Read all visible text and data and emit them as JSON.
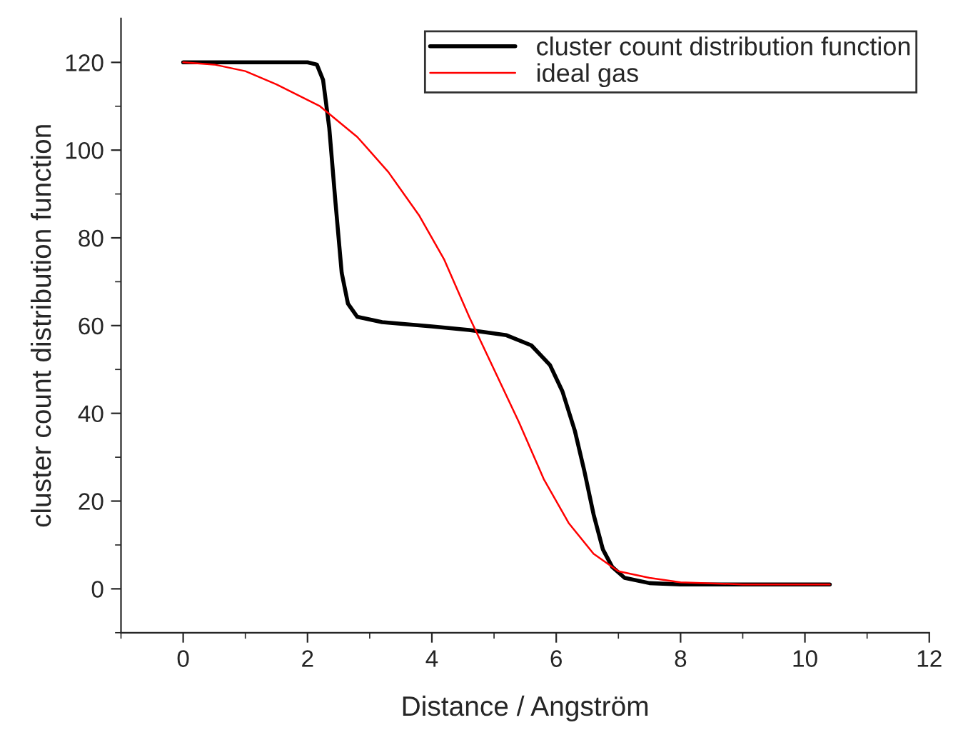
{
  "chart_data": {
    "type": "line",
    "xlabel": "Distance / Angström",
    "ylabel": "cluster count distribution function",
    "xlim": [
      -1,
      12
    ],
    "xticks": [
      0,
      2,
      4,
      6,
      8,
      10,
      12
    ],
    "ylim": [
      -10,
      130
    ],
    "yticks": [
      0,
      20,
      40,
      60,
      80,
      100,
      120
    ],
    "legend": "top right",
    "grid": false,
    "marker": "none",
    "line_style": "solid",
    "series": [
      {
        "name": "cluster count distribution function",
        "color": "#000000",
        "x": [
          0,
          1,
          2,
          2.15,
          2.25,
          2.35,
          2.45,
          2.55,
          2.65,
          2.8,
          3.2,
          4,
          4.6,
          5.2,
          5.6,
          5.9,
          6.1,
          6.3,
          6.45,
          6.6,
          6.75,
          6.9,
          7.1,
          7.5,
          8,
          10.4
        ],
        "values": [
          120,
          120,
          120,
          119.5,
          116,
          105,
          88,
          72,
          65,
          62,
          60.8,
          59.8,
          59,
          57.8,
          55.5,
          51,
          45,
          36,
          27,
          17,
          9,
          5,
          2.5,
          1.3,
          1,
          1
        ]
      },
      {
        "name": "ideal gas",
        "color": "#ff0000",
        "x": [
          0,
          0.5,
          1,
          1.5,
          2.2,
          2.8,
          3.3,
          3.8,
          4.2,
          4.6,
          5,
          5.4,
          5.8,
          6.2,
          6.6,
          7,
          7.5,
          8,
          9,
          10.4
        ],
        "values": [
          120,
          119.5,
          118,
          115,
          110,
          103,
          95,
          85,
          75,
          62,
          50,
          38,
          25,
          15,
          8,
          4,
          2.5,
          1.5,
          1,
          1
        ]
      }
    ]
  }
}
